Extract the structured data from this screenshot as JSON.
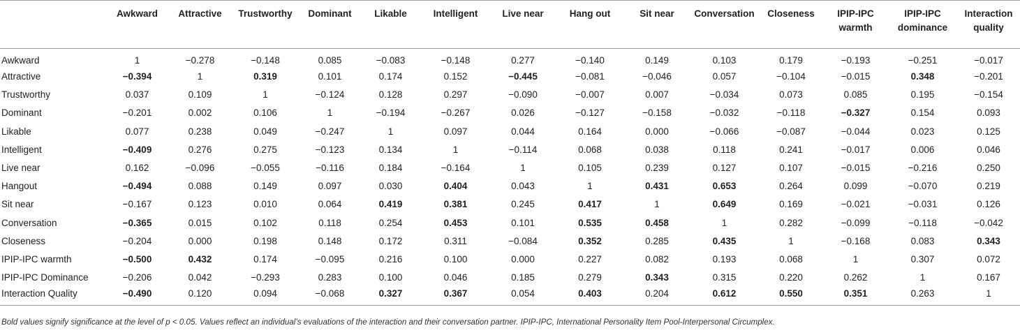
{
  "table": {
    "corner": "",
    "columns": [
      "Awkward",
      "Attractive",
      "Trustworthy",
      "Dominant",
      "Likable",
      "Intelligent",
      "Live near",
      "Hang out",
      "Sit near",
      "Conversation",
      "Closeness",
      "IPIP-IPC warmth",
      "IPIP-IPC dominance",
      "Interaction quality"
    ],
    "rows": [
      {
        "label": "Awkward",
        "cells": [
          {
            "v": "1"
          },
          {
            "v": "−0.278"
          },
          {
            "v": "−0.148"
          },
          {
            "v": "0.085"
          },
          {
            "v": "−0.083"
          },
          {
            "v": "−0.148"
          },
          {
            "v": "0.277"
          },
          {
            "v": "−0.140"
          },
          {
            "v": "0.149"
          },
          {
            "v": "0.103"
          },
          {
            "v": "0.179"
          },
          {
            "v": "−0.193"
          },
          {
            "v": "−0.251"
          },
          {
            "v": "−0.017"
          }
        ]
      },
      {
        "label": "Attractive",
        "cells": [
          {
            "v": "−0.394",
            "bold": true
          },
          {
            "v": "1"
          },
          {
            "v": "0.319",
            "bold": true
          },
          {
            "v": "0.101"
          },
          {
            "v": "0.174"
          },
          {
            "v": "0.152"
          },
          {
            "v": "−0.445",
            "bold": true
          },
          {
            "v": "−0.081"
          },
          {
            "v": "−0.046"
          },
          {
            "v": "0.057"
          },
          {
            "v": "−0.104"
          },
          {
            "v": "−0.015"
          },
          {
            "v": "0.348",
            "bold": true
          },
          {
            "v": "−0.201"
          }
        ]
      },
      {
        "label": "Trustworthy",
        "cells": [
          {
            "v": "0.037"
          },
          {
            "v": "0.109"
          },
          {
            "v": "1"
          },
          {
            "v": "−0.124"
          },
          {
            "v": "0.128"
          },
          {
            "v": "0.297"
          },
          {
            "v": "−0.090"
          },
          {
            "v": "−0.007"
          },
          {
            "v": "0.007"
          },
          {
            "v": "−0.034"
          },
          {
            "v": "0.073"
          },
          {
            "v": "0.085"
          },
          {
            "v": "0.195"
          },
          {
            "v": "−0.154"
          }
        ]
      },
      {
        "label": "Dominant",
        "cells": [
          {
            "v": "−0.201"
          },
          {
            "v": "0.002"
          },
          {
            "v": "0.106"
          },
          {
            "v": "1"
          },
          {
            "v": "−0.194"
          },
          {
            "v": "−0.267"
          },
          {
            "v": "0.026"
          },
          {
            "v": "−0.127"
          },
          {
            "v": "−0.158"
          },
          {
            "v": "−0.032"
          },
          {
            "v": "−0.118"
          },
          {
            "v": "−0.327",
            "bold": true
          },
          {
            "v": "0.154"
          },
          {
            "v": "0.093"
          }
        ]
      },
      {
        "label": "Likable",
        "cells": [
          {
            "v": "0.077"
          },
          {
            "v": "0.238"
          },
          {
            "v": "0.049"
          },
          {
            "v": "−0.247"
          },
          {
            "v": "1"
          },
          {
            "v": "0.097"
          },
          {
            "v": "0.044"
          },
          {
            "v": "0.164"
          },
          {
            "v": "0.000"
          },
          {
            "v": "−0.066"
          },
          {
            "v": "−0.087"
          },
          {
            "v": "−0.044"
          },
          {
            "v": "0.023"
          },
          {
            "v": "0.125"
          }
        ]
      },
      {
        "label": "Intelligent",
        "cells": [
          {
            "v": "−0.409",
            "bold": true
          },
          {
            "v": "0.276"
          },
          {
            "v": "0.275"
          },
          {
            "v": "−0.123"
          },
          {
            "v": "0.134"
          },
          {
            "v": "1"
          },
          {
            "v": "−0.114"
          },
          {
            "v": "0.068"
          },
          {
            "v": "0.038"
          },
          {
            "v": "0.118"
          },
          {
            "v": "0.241"
          },
          {
            "v": "−0.017"
          },
          {
            "v": "0.006"
          },
          {
            "v": "0.046"
          }
        ]
      },
      {
        "label": "Live near",
        "cells": [
          {
            "v": "0.162"
          },
          {
            "v": "−0.096"
          },
          {
            "v": "−0.055"
          },
          {
            "v": "−0.116"
          },
          {
            "v": "0.184"
          },
          {
            "v": "−0.164"
          },
          {
            "v": "1"
          },
          {
            "v": "0.105"
          },
          {
            "v": "0.239"
          },
          {
            "v": "0.127"
          },
          {
            "v": "0.107"
          },
          {
            "v": "−0.015"
          },
          {
            "v": "−0.216"
          },
          {
            "v": "0.250"
          }
        ]
      },
      {
        "label": "Hangout",
        "cells": [
          {
            "v": "−0.494",
            "bold": true
          },
          {
            "v": "0.088"
          },
          {
            "v": "0.149"
          },
          {
            "v": "0.097"
          },
          {
            "v": "0.030"
          },
          {
            "v": "0.404",
            "bold": true
          },
          {
            "v": "0.043"
          },
          {
            "v": "1"
          },
          {
            "v": "0.431",
            "bold": true
          },
          {
            "v": "0.653",
            "bold": true
          },
          {
            "v": "0.264"
          },
          {
            "v": "0.099"
          },
          {
            "v": "−0.070"
          },
          {
            "v": "0.219"
          }
        ]
      },
      {
        "label": "Sit near",
        "cells": [
          {
            "v": "−0.167"
          },
          {
            "v": "0.123"
          },
          {
            "v": "0.010"
          },
          {
            "v": "0.064"
          },
          {
            "v": "0.419",
            "bold": true
          },
          {
            "v": "0.381",
            "bold": true
          },
          {
            "v": "0.245"
          },
          {
            "v": "0.417",
            "bold": true
          },
          {
            "v": "1"
          },
          {
            "v": "0.649",
            "bold": true
          },
          {
            "v": "0.169"
          },
          {
            "v": "−0.021"
          },
          {
            "v": "−0.031"
          },
          {
            "v": "0.126"
          }
        ]
      },
      {
        "label": "Conversation",
        "cells": [
          {
            "v": "−0.365",
            "bold": true
          },
          {
            "v": "0.015"
          },
          {
            "v": "0.102"
          },
          {
            "v": "0.118"
          },
          {
            "v": "0.254"
          },
          {
            "v": "0.453",
            "bold": true
          },
          {
            "v": "0.101"
          },
          {
            "v": "0.535",
            "bold": true
          },
          {
            "v": "0.458",
            "bold": true
          },
          {
            "v": "1"
          },
          {
            "v": "0.282"
          },
          {
            "v": "−0.099"
          },
          {
            "v": "−0.118"
          },
          {
            "v": "−0.042"
          }
        ]
      },
      {
        "label": "Closeness",
        "cells": [
          {
            "v": "−0.204"
          },
          {
            "v": "0.000"
          },
          {
            "v": "0.198"
          },
          {
            "v": "0.148"
          },
          {
            "v": "0.172"
          },
          {
            "v": "0.311"
          },
          {
            "v": "−0.084"
          },
          {
            "v": "0.352",
            "bold": true
          },
          {
            "v": "0.285"
          },
          {
            "v": "0.435",
            "bold": true
          },
          {
            "v": "1"
          },
          {
            "v": "−0.168"
          },
          {
            "v": "0.083"
          },
          {
            "v": "0.343",
            "bold": true
          }
        ]
      },
      {
        "label": "IPIP-IPC warmth",
        "cells": [
          {
            "v": "−0.500",
            "bold": true
          },
          {
            "v": "0.432",
            "bold": true
          },
          {
            "v": "0.174"
          },
          {
            "v": "−0.095"
          },
          {
            "v": "0.216"
          },
          {
            "v": "0.100"
          },
          {
            "v": "0.000"
          },
          {
            "v": "0.227"
          },
          {
            "v": "0.082"
          },
          {
            "v": "0.193"
          },
          {
            "v": "0.068"
          },
          {
            "v": "1"
          },
          {
            "v": "0.307"
          },
          {
            "v": "0.072"
          }
        ]
      },
      {
        "label": "IPIP-IPC Dominance",
        "cells": [
          {
            "v": "−0.206"
          },
          {
            "v": "0.042"
          },
          {
            "v": "−0.293"
          },
          {
            "v": "0.283"
          },
          {
            "v": "0.100"
          },
          {
            "v": "0.046"
          },
          {
            "v": "0.185"
          },
          {
            "v": "0.279"
          },
          {
            "v": "0.343",
            "bold": true
          },
          {
            "v": "0.315"
          },
          {
            "v": "0.220"
          },
          {
            "v": "0.262"
          },
          {
            "v": "1"
          },
          {
            "v": "0.167"
          }
        ]
      },
      {
        "label": "Interaction Quality",
        "cells": [
          {
            "v": "−0.490",
            "bold": true
          },
          {
            "v": "0.120"
          },
          {
            "v": "0.094"
          },
          {
            "v": "−0.068"
          },
          {
            "v": "0.327",
            "bold": true
          },
          {
            "v": "0.367",
            "bold": true
          },
          {
            "v": "0.054"
          },
          {
            "v": "0.403",
            "bold": true
          },
          {
            "v": "0.204"
          },
          {
            "v": "0.612",
            "bold": true
          },
          {
            "v": "0.550",
            "bold": true
          },
          {
            "v": "0.351",
            "bold": true
          },
          {
            "v": "0.263"
          },
          {
            "v": "1"
          }
        ]
      }
    ]
  },
  "footnote": "Bold values signify significance at the level of p < 0.05. Values reflect an individual’s evaluations of the interaction and their conversation partner. IPIP-IPC, International Personality Item Pool-Interpersonal Circumplex.",
  "colors": {
    "text": "#222222",
    "rule": "#9a9a9a"
  }
}
